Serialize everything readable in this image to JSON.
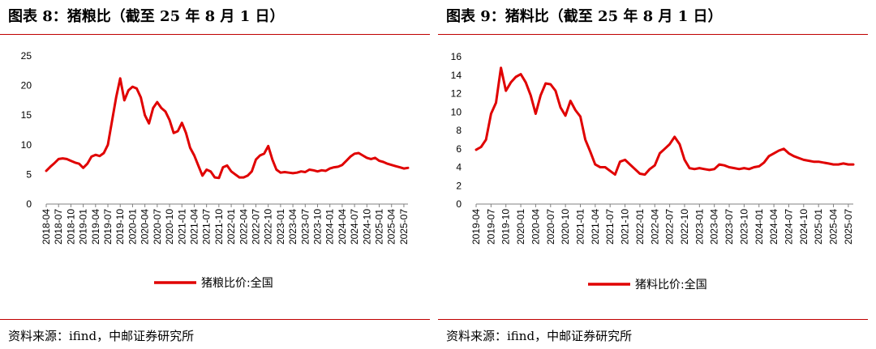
{
  "panels": [
    {
      "title": "图表 8：猪粮比（截至 25 年 8 月 1 日）",
      "source": "资料来源：ifind，中邮证券研究所",
      "legend": "猪粮比价:全国"
    },
    {
      "title": "图表 9：猪料比（截至 25 年 8 月 1 日）",
      "source": "资料来源：ifind，中邮证券研究所",
      "legend": "猪料比价:全国"
    }
  ],
  "colors": {
    "line": "#e00000",
    "rule": "#c00000"
  },
  "chart_data": [
    {
      "type": "line",
      "title": "",
      "xlabel": "",
      "ylabel": "",
      "ylim": [
        0,
        25
      ],
      "yticks": [
        0,
        5,
        10,
        15,
        20,
        25
      ],
      "xticks": [
        "2018-04",
        "2018-07",
        "2018-10",
        "2019-01",
        "2019-04",
        "2019-07",
        "2019-10",
        "2020-01",
        "2020-04",
        "2020-07",
        "2020-10",
        "2021-01",
        "2021-04",
        "2021-07",
        "2021-10",
        "2022-01",
        "2022-04",
        "2022-07",
        "2022-10",
        "2023-01",
        "2023-04",
        "2023-07",
        "2023-10",
        "2024-01",
        "2024-04",
        "2024-07",
        "2024-10",
        "2025-01",
        "2025-04",
        "2025-07"
      ],
      "xrange": [
        "2018-04",
        "2025-08"
      ],
      "grid": false,
      "legend_position": "bottom-center",
      "series": [
        {
          "name": "猪粮比价:全国",
          "x": [
            "2018-04",
            "2018-05",
            "2018-06",
            "2018-07",
            "2018-08",
            "2018-09",
            "2018-10",
            "2018-11",
            "2018-12",
            "2019-01",
            "2019-02",
            "2019-03",
            "2019-04",
            "2019-05",
            "2019-06",
            "2019-07",
            "2019-08",
            "2019-09",
            "2019-10",
            "2019-11",
            "2019-12",
            "2020-01",
            "2020-02",
            "2020-03",
            "2020-04",
            "2020-05",
            "2020-06",
            "2020-07",
            "2020-08",
            "2020-09",
            "2020-10",
            "2020-11",
            "2020-12",
            "2021-01",
            "2021-02",
            "2021-03",
            "2021-04",
            "2021-05",
            "2021-06",
            "2021-07",
            "2021-08",
            "2021-09",
            "2021-10",
            "2021-11",
            "2021-12",
            "2022-01",
            "2022-02",
            "2022-03",
            "2022-04",
            "2022-05",
            "2022-06",
            "2022-07",
            "2022-08",
            "2022-09",
            "2022-10",
            "2022-11",
            "2022-12",
            "2023-01",
            "2023-02",
            "2023-03",
            "2023-04",
            "2023-05",
            "2023-06",
            "2023-07",
            "2023-08",
            "2023-09",
            "2023-10",
            "2023-11",
            "2023-12",
            "2024-01",
            "2024-02",
            "2024-03",
            "2024-04",
            "2024-05",
            "2024-06",
            "2024-07",
            "2024-08",
            "2024-09",
            "2024-10",
            "2024-11",
            "2024-12",
            "2025-01",
            "2025-02",
            "2025-03",
            "2025-04",
            "2025-05",
            "2025-06",
            "2025-07",
            "2025-08"
          ],
          "y": [
            5.6,
            6.3,
            6.9,
            7.6,
            7.7,
            7.6,
            7.3,
            7.0,
            6.8,
            6.1,
            6.8,
            8.0,
            8.3,
            8.1,
            8.6,
            10.0,
            14.0,
            18.0,
            21.2,
            17.5,
            19.2,
            19.8,
            19.5,
            18.0,
            15.0,
            13.6,
            16.2,
            17.2,
            16.2,
            15.6,
            14.2,
            12.0,
            12.3,
            13.7,
            12.0,
            9.5,
            8.2,
            6.5,
            4.8,
            5.8,
            5.5,
            4.5,
            4.4,
            6.2,
            6.5,
            5.5,
            5.0,
            4.5,
            4.5,
            4.8,
            5.5,
            7.5,
            8.2,
            8.5,
            9.8,
            7.5,
            5.8,
            5.3,
            5.4,
            5.3,
            5.2,
            5.3,
            5.5,
            5.4,
            5.8,
            5.7,
            5.5,
            5.7,
            5.6,
            6.0,
            6.2,
            6.3,
            6.6,
            7.3,
            8.0,
            8.5,
            8.6,
            8.2,
            7.8,
            7.6,
            7.8,
            7.3,
            7.1,
            6.8,
            6.6,
            6.4,
            6.2,
            6.0,
            6.1
          ]
        }
      ]
    },
    {
      "type": "line",
      "title": "",
      "xlabel": "",
      "ylabel": "",
      "ylim": [
        0,
        16
      ],
      "yticks": [
        0,
        2,
        4,
        6,
        8,
        10,
        12,
        14,
        16
      ],
      "xticks": [
        "2019-04",
        "2019-07",
        "2019-10",
        "2020-01",
        "2020-04",
        "2020-07",
        "2020-10",
        "2021-01",
        "2021-04",
        "2021-07",
        "2021-10",
        "2022-01",
        "2022-04",
        "2022-07",
        "2022-10",
        "2023-01",
        "2023-04",
        "2023-07",
        "2023-10",
        "2024-01",
        "2024-04",
        "2024-07",
        "2024-10",
        "2025-01",
        "2025-04",
        "2025-07"
      ],
      "xrange": [
        "2019-04",
        "2025-08"
      ],
      "grid": false,
      "legend_position": "bottom-center",
      "series": [
        {
          "name": "猪料比价:全国",
          "x": [
            "2019-04",
            "2019-05",
            "2019-06",
            "2019-07",
            "2019-08",
            "2019-09",
            "2019-10",
            "2019-11",
            "2019-12",
            "2020-01",
            "2020-02",
            "2020-03",
            "2020-04",
            "2020-05",
            "2020-06",
            "2020-07",
            "2020-08",
            "2020-09",
            "2020-10",
            "2020-11",
            "2020-12",
            "2021-01",
            "2021-02",
            "2021-03",
            "2021-04",
            "2021-05",
            "2021-06",
            "2021-07",
            "2021-08",
            "2021-09",
            "2021-10",
            "2021-11",
            "2021-12",
            "2022-01",
            "2022-02",
            "2022-03",
            "2022-04",
            "2022-05",
            "2022-06",
            "2022-07",
            "2022-08",
            "2022-09",
            "2022-10",
            "2022-11",
            "2022-12",
            "2023-01",
            "2023-02",
            "2023-03",
            "2023-04",
            "2023-05",
            "2023-06",
            "2023-07",
            "2023-08",
            "2023-09",
            "2023-10",
            "2023-11",
            "2023-12",
            "2024-01",
            "2024-02",
            "2024-03",
            "2024-04",
            "2024-05",
            "2024-06",
            "2024-07",
            "2024-08",
            "2024-09",
            "2024-10",
            "2024-11",
            "2024-12",
            "2025-01",
            "2025-02",
            "2025-03",
            "2025-04",
            "2025-05",
            "2025-06",
            "2025-07",
            "2025-08"
          ],
          "y": [
            5.9,
            6.2,
            7.0,
            9.8,
            11.0,
            14.8,
            12.3,
            13.2,
            13.8,
            14.1,
            13.2,
            11.8,
            9.8,
            11.8,
            13.1,
            13.0,
            12.3,
            10.5,
            9.6,
            11.2,
            10.2,
            9.5,
            7.0,
            5.7,
            4.3,
            4.0,
            4.0,
            3.6,
            3.2,
            4.6,
            4.8,
            4.3,
            3.8,
            3.3,
            3.2,
            3.8,
            4.2,
            5.5,
            6.0,
            6.5,
            7.3,
            6.5,
            4.8,
            3.9,
            3.8,
            3.9,
            3.8,
            3.7,
            3.8,
            4.3,
            4.2,
            4.0,
            3.9,
            3.8,
            3.9,
            3.8,
            4.0,
            4.1,
            4.5,
            5.2,
            5.5,
            5.8,
            6.0,
            5.5,
            5.2,
            5.0,
            4.8,
            4.7,
            4.6,
            4.6,
            4.5,
            4.4,
            4.3,
            4.3,
            4.4,
            4.3,
            4.3
          ]
        }
      ]
    }
  ]
}
